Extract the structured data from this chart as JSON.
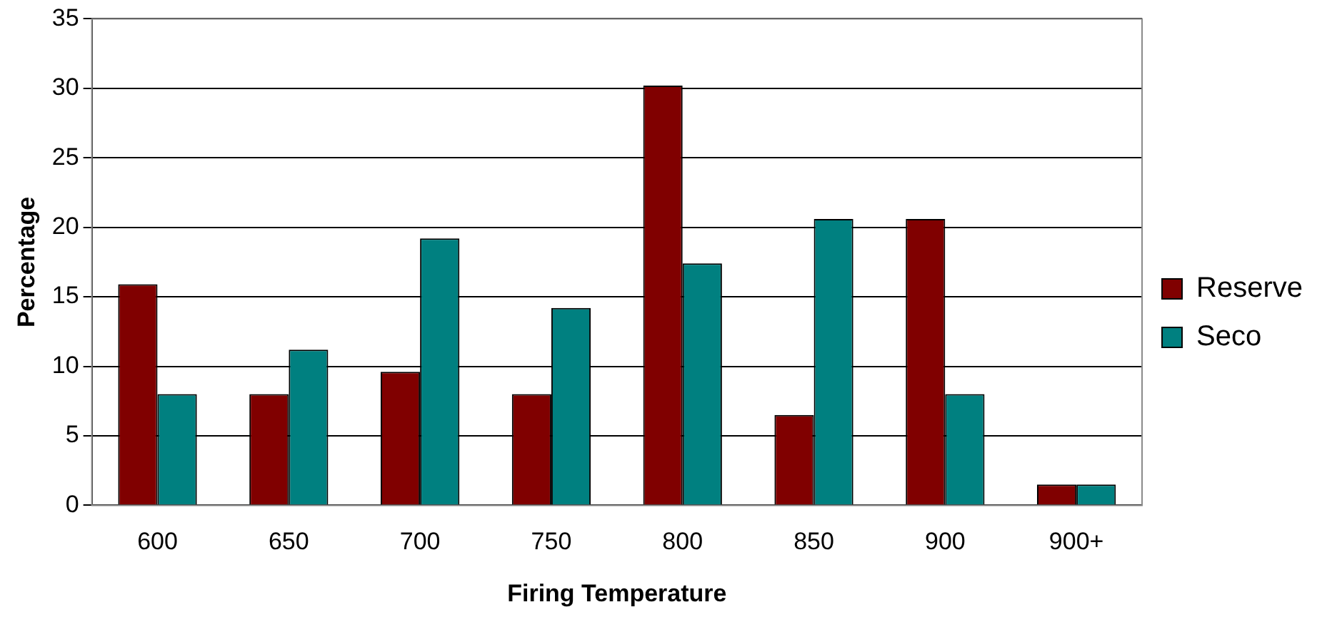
{
  "chart_data": {
    "type": "bar",
    "xlabel": "Firing Temperature",
    "ylabel": "Percentage",
    "categories": [
      "600",
      "650",
      "700",
      "750",
      "800",
      "850",
      "900",
      "900+"
    ],
    "series": [
      {
        "name": "Reserve",
        "color": "#800000",
        "values": [
          15.9,
          8.0,
          9.6,
          8.0,
          30.2,
          6.5,
          20.6,
          1.5
        ]
      },
      {
        "name": "Seco",
        "color": "#008080",
        "values": [
          8.0,
          11.2,
          19.2,
          14.2,
          17.4,
          20.6,
          8.0,
          1.5
        ]
      }
    ],
    "ylim": [
      0,
      35
    ],
    "yticks": [
      0,
      5,
      10,
      15,
      20,
      25,
      30,
      35
    ],
    "grid": "y",
    "legend": "right"
  }
}
